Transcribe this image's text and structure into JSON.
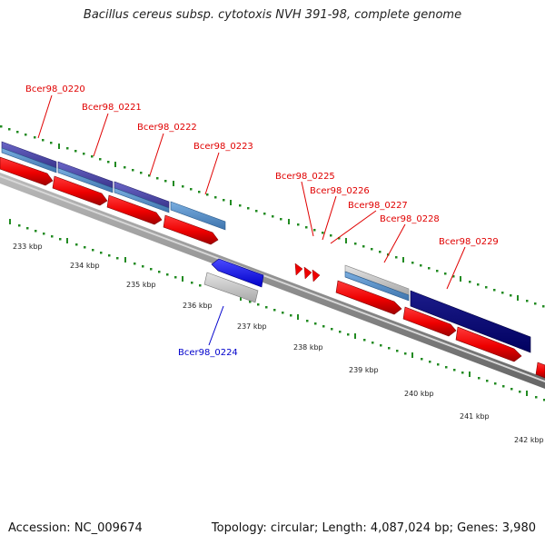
{
  "title": "Bacillus cereus subsp. cytotoxis NVH 391-98, complete genome",
  "footer": {
    "accession": "Accession: NC_009674",
    "summary": "Topology: circular; Length: 4,087,024 bp; Genes: 3,980"
  },
  "scale": {
    "labels": [
      "233 kbp",
      "234 kbp",
      "235 kbp",
      "236 kbp",
      "237 kbp",
      "238 kbp",
      "239 kbp",
      "240 kbp",
      "241 kbp",
      "242 kbp"
    ]
  },
  "genes": [
    {
      "label": "Bcer98_0220",
      "strand": "forward"
    },
    {
      "label": "Bcer98_0221",
      "strand": "forward"
    },
    {
      "label": "Bcer98_0222",
      "strand": "forward"
    },
    {
      "label": "Bcer98_0223",
      "strand": "forward"
    },
    {
      "label": "Bcer98_0224",
      "strand": "reverse"
    },
    {
      "label": "Bcer98_0225",
      "strand": "forward"
    },
    {
      "label": "Bcer98_0226",
      "strand": "forward"
    },
    {
      "label": "Bcer98_0227",
      "strand": "forward"
    },
    {
      "label": "Bcer98_0228",
      "strand": "forward"
    },
    {
      "label": "Bcer98_0229",
      "strand": "forward"
    }
  ],
  "colors": {
    "forward_label": "#e00000",
    "reverse_label": "#0000cc",
    "cds_forward": "#ff0000",
    "cds_reverse": "#0000ff",
    "tick": "#228b22",
    "backbone": "#888888"
  }
}
